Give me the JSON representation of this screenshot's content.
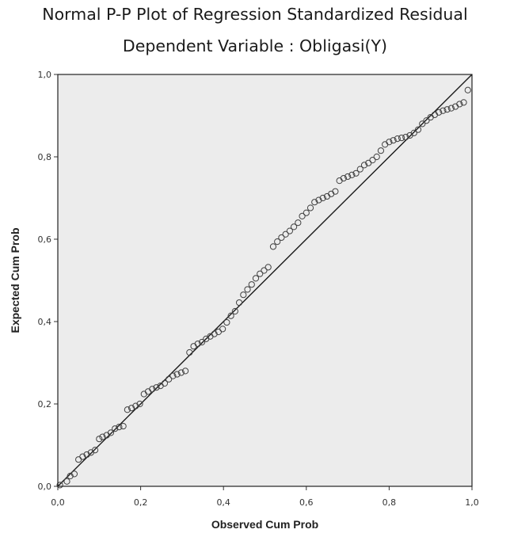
{
  "chart_data": {
    "type": "scatter",
    "title": "Normal P-P Plot of Regression Standardized Residual",
    "subtitle": "Dependent Variable : Obligasi(Y)",
    "xlabel": "Observed Cum Prob",
    "ylabel": "Expected Cum Prob",
    "xlim": [
      0.0,
      1.0
    ],
    "ylim": [
      0.0,
      1.0
    ],
    "x_ticks": [
      "0,0",
      "0,2",
      "0,4",
      "0,6",
      "0,8",
      "1,0"
    ],
    "y_ticks": [
      "0,0",
      "0,2",
      "0,4",
      "0,6",
      "0,8",
      "1,0"
    ],
    "grid": false,
    "reference_line": [
      [
        0.0,
        0.0
      ],
      [
        1.0,
        1.0
      ]
    ],
    "points": [
      [
        0.005,
        0.003
      ],
      [
        0.022,
        0.012
      ],
      [
        0.03,
        0.025
      ],
      [
        0.04,
        0.03
      ],
      [
        0.05,
        0.065
      ],
      [
        0.06,
        0.072
      ],
      [
        0.07,
        0.077
      ],
      [
        0.08,
        0.082
      ],
      [
        0.09,
        0.088
      ],
      [
        0.1,
        0.115
      ],
      [
        0.108,
        0.12
      ],
      [
        0.118,
        0.124
      ],
      [
        0.128,
        0.13
      ],
      [
        0.138,
        0.14
      ],
      [
        0.148,
        0.144
      ],
      [
        0.158,
        0.146
      ],
      [
        0.168,
        0.186
      ],
      [
        0.178,
        0.19
      ],
      [
        0.188,
        0.195
      ],
      [
        0.198,
        0.2
      ],
      [
        0.208,
        0.224
      ],
      [
        0.218,
        0.23
      ],
      [
        0.228,
        0.236
      ],
      [
        0.238,
        0.24
      ],
      [
        0.248,
        0.244
      ],
      [
        0.258,
        0.25
      ],
      [
        0.268,
        0.26
      ],
      [
        0.278,
        0.268
      ],
      [
        0.288,
        0.272
      ],
      [
        0.298,
        0.276
      ],
      [
        0.308,
        0.28
      ],
      [
        0.318,
        0.325
      ],
      [
        0.328,
        0.34
      ],
      [
        0.338,
        0.346
      ],
      [
        0.348,
        0.35
      ],
      [
        0.358,
        0.358
      ],
      [
        0.368,
        0.364
      ],
      [
        0.378,
        0.37
      ],
      [
        0.388,
        0.375
      ],
      [
        0.398,
        0.382
      ],
      [
        0.408,
        0.398
      ],
      [
        0.418,
        0.414
      ],
      [
        0.428,
        0.425
      ],
      [
        0.438,
        0.446
      ],
      [
        0.448,
        0.465
      ],
      [
        0.458,
        0.478
      ],
      [
        0.468,
        0.49
      ],
      [
        0.478,
        0.505
      ],
      [
        0.488,
        0.516
      ],
      [
        0.498,
        0.524
      ],
      [
        0.508,
        0.532
      ],
      [
        0.52,
        0.582
      ],
      [
        0.53,
        0.594
      ],
      [
        0.54,
        0.604
      ],
      [
        0.55,
        0.612
      ],
      [
        0.56,
        0.62
      ],
      [
        0.57,
        0.63
      ],
      [
        0.58,
        0.64
      ],
      [
        0.59,
        0.656
      ],
      [
        0.6,
        0.664
      ],
      [
        0.61,
        0.676
      ],
      [
        0.62,
        0.69
      ],
      [
        0.63,
        0.695
      ],
      [
        0.64,
        0.7
      ],
      [
        0.65,
        0.704
      ],
      [
        0.66,
        0.71
      ],
      [
        0.67,
        0.716
      ],
      [
        0.68,
        0.742
      ],
      [
        0.69,
        0.748
      ],
      [
        0.7,
        0.752
      ],
      [
        0.71,
        0.756
      ],
      [
        0.72,
        0.76
      ],
      [
        0.73,
        0.77
      ],
      [
        0.74,
        0.78
      ],
      [
        0.75,
        0.785
      ],
      [
        0.76,
        0.792
      ],
      [
        0.77,
        0.8
      ],
      [
        0.78,
        0.815
      ],
      [
        0.79,
        0.83
      ],
      [
        0.8,
        0.836
      ],
      [
        0.81,
        0.84
      ],
      [
        0.82,
        0.844
      ],
      [
        0.83,
        0.846
      ],
      [
        0.84,
        0.848
      ],
      [
        0.85,
        0.852
      ],
      [
        0.86,
        0.858
      ],
      [
        0.87,
        0.866
      ],
      [
        0.88,
        0.88
      ],
      [
        0.89,
        0.888
      ],
      [
        0.9,
        0.896
      ],
      [
        0.91,
        0.902
      ],
      [
        0.92,
        0.908
      ],
      [
        0.93,
        0.912
      ],
      [
        0.94,
        0.915
      ],
      [
        0.95,
        0.918
      ],
      [
        0.96,
        0.922
      ],
      [
        0.97,
        0.928
      ],
      [
        0.98,
        0.932
      ],
      [
        0.99,
        0.962
      ]
    ],
    "colors": {
      "plot_background": "#ececec",
      "marker_stroke": "#404040",
      "line": "#1a1a1a"
    }
  }
}
